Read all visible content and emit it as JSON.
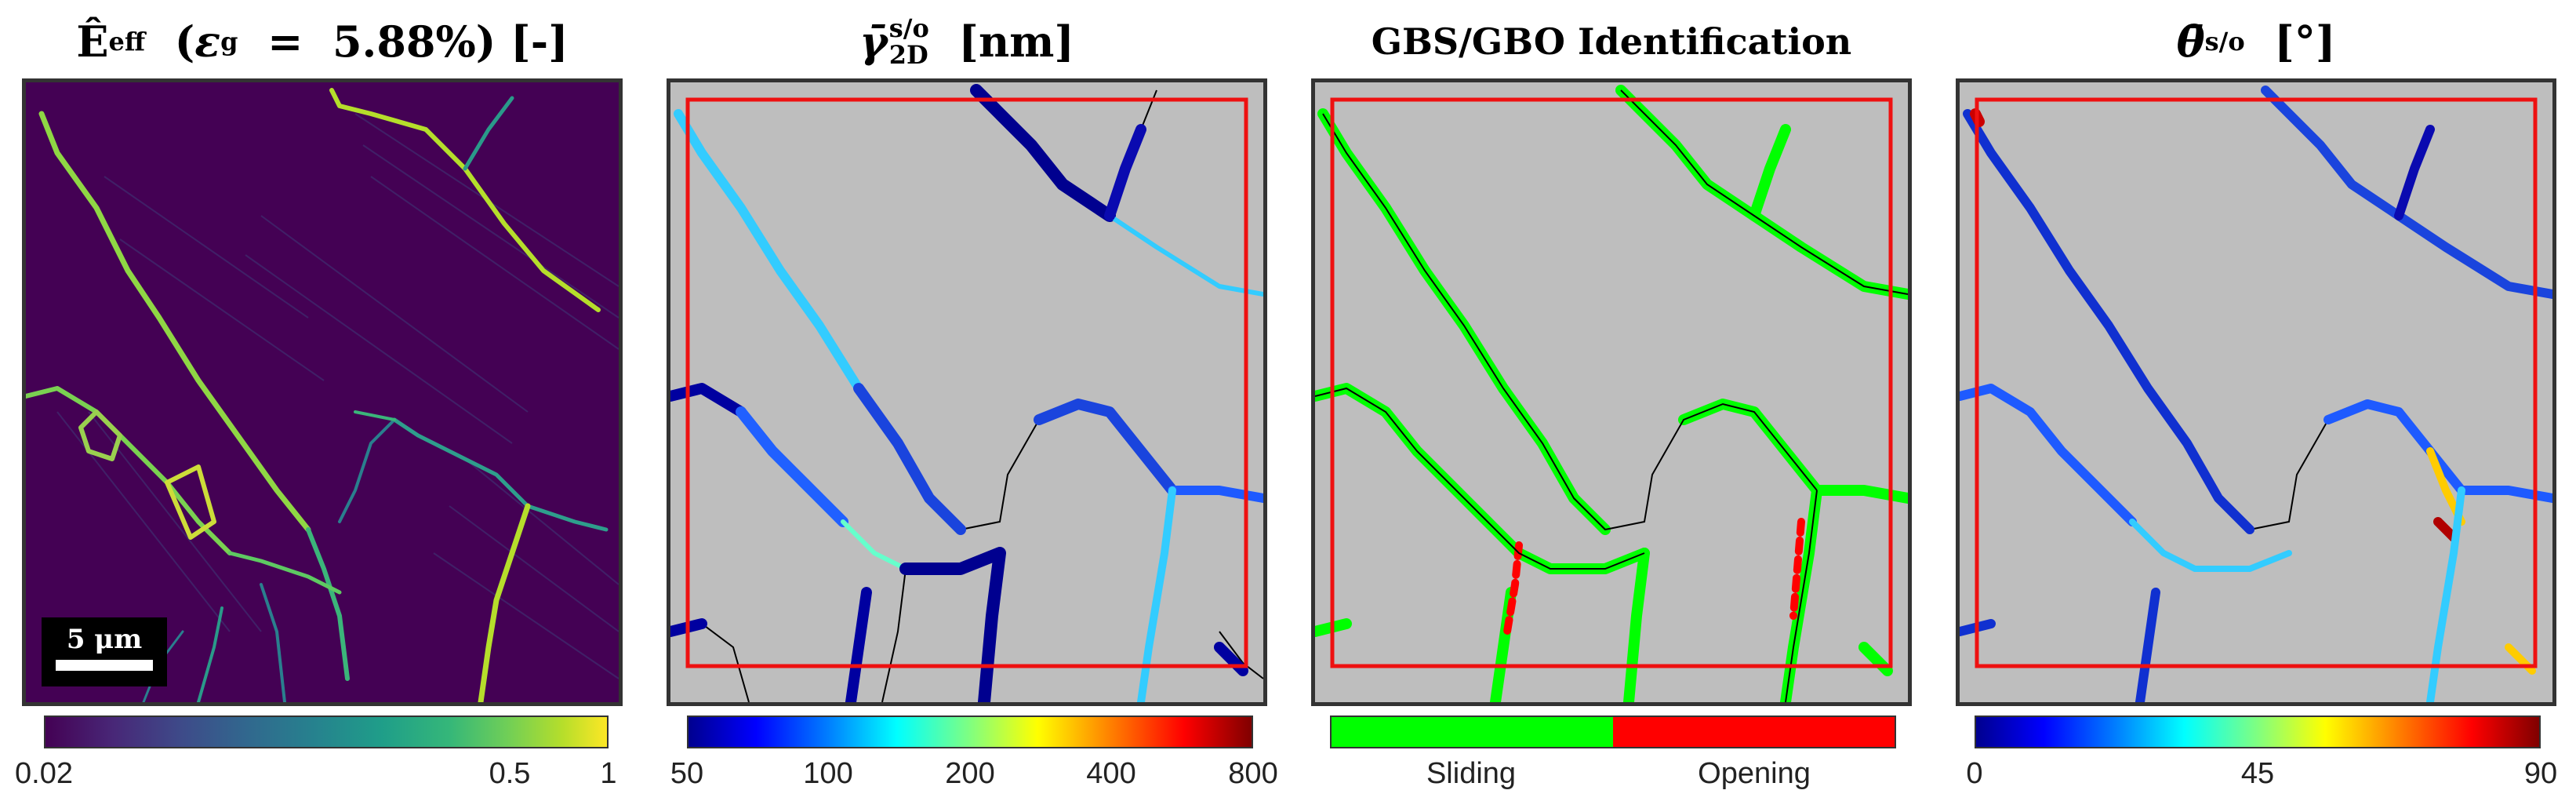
{
  "panels": [
    {
      "title_main": "Ê",
      "title_sub": "eff",
      "title_paren_open": "(",
      "title_symbol": "ε",
      "title_symbol_sub": "g",
      "title_eq": "=",
      "title_value": "5.88%)",
      "title_unit": "[-]",
      "colormap": "viridis",
      "colorbar_ticks": [
        "0.02",
        "0.5",
        "1"
      ],
      "scale_bar_label": "5 μm"
    },
    {
      "title_main": "γ̄",
      "title_sup": "s/o",
      "title_sub": "2D",
      "title_unit": "[nm]",
      "colormap": "jet",
      "colorbar_ticks": [
        "50",
        "100",
        "200",
        "400",
        "800"
      ]
    },
    {
      "title": "GBS/GBO Identification",
      "colormap": "binary green/red",
      "colorbar_ticks": [
        "Sliding",
        "Opening"
      ],
      "colors": {
        "sliding": "#00ff00",
        "opening": "#ff0000"
      }
    },
    {
      "title_main": "θ̄",
      "title_sup": "s/o",
      "title_unit": "[°]",
      "colormap": "jet",
      "colorbar_ticks": [
        "0",
        "45",
        "90"
      ]
    }
  ],
  "colors": {
    "map_background": "#bebebe",
    "roi_box": "#ee1111",
    "grain_boundary": "#000000",
    "panel1_background": "#440154"
  }
}
